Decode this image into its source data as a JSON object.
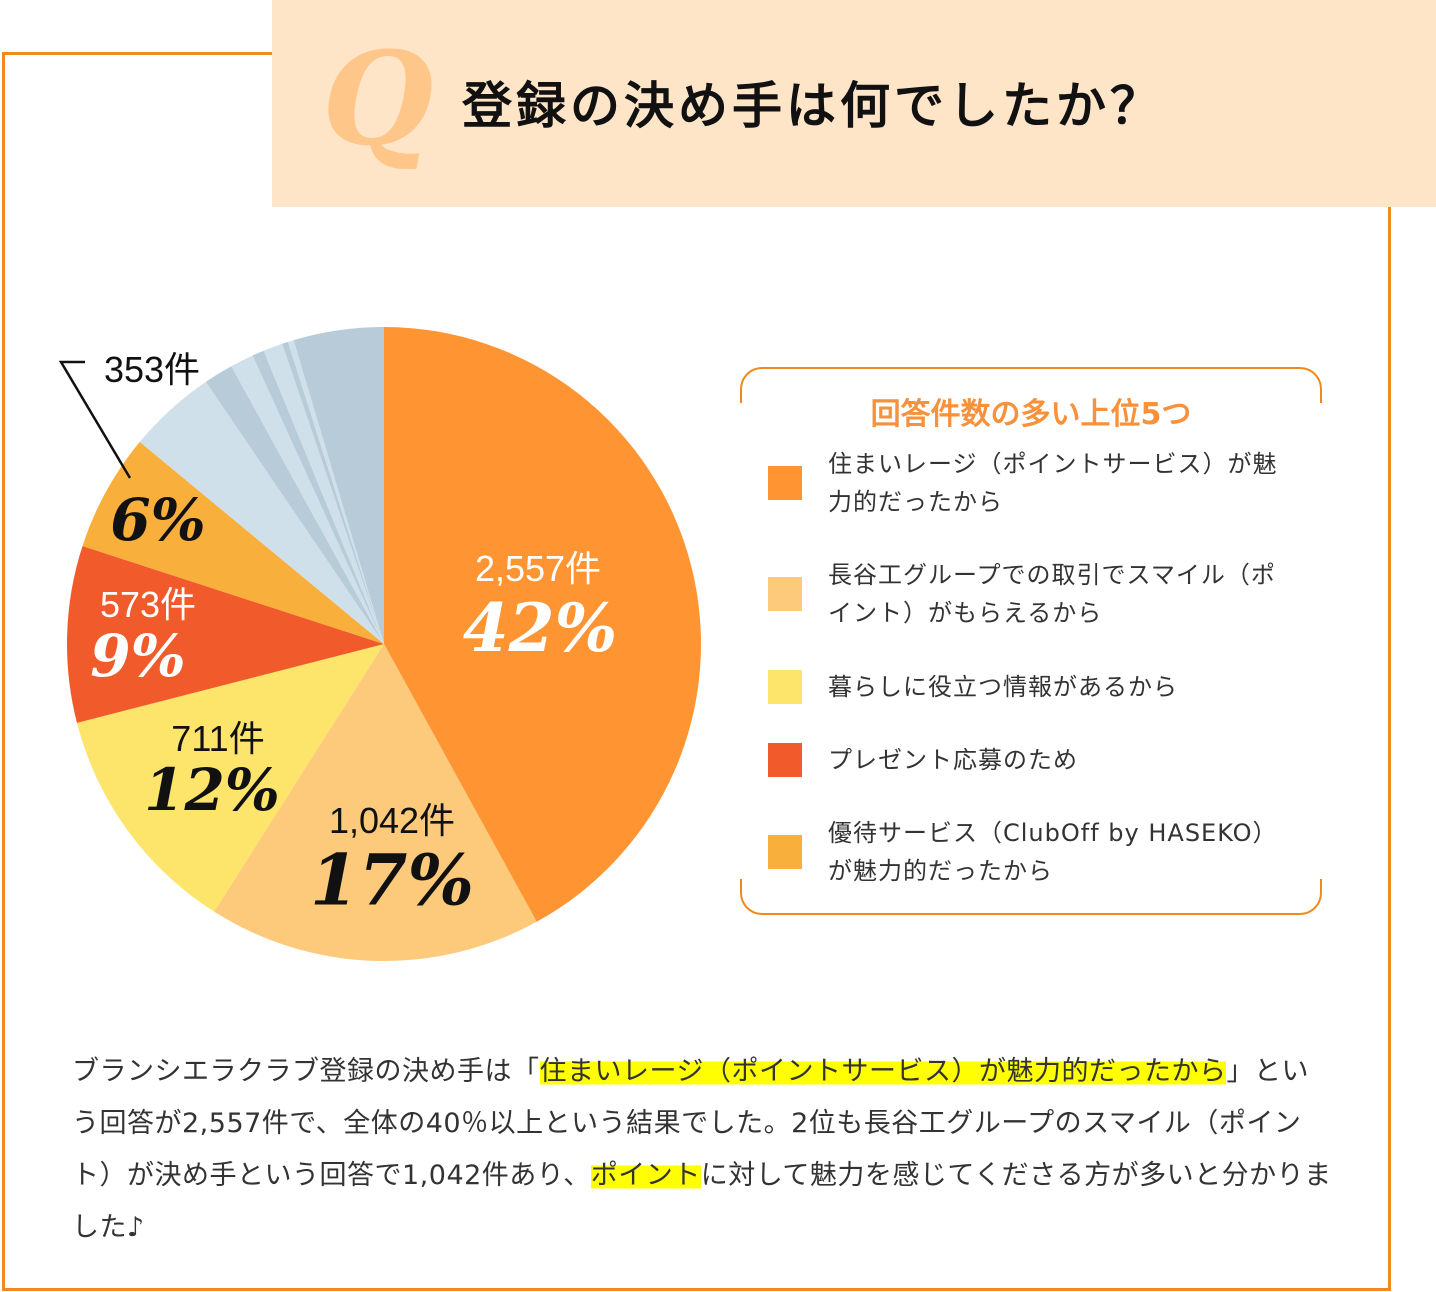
{
  "header": {
    "q_mark": "Q",
    "title": "登録の決め手は何でしたか？"
  },
  "colors": {
    "accent": "#F08A1E",
    "header_bg": "#FFE5C8",
    "highlight": "#FFFF00"
  },
  "chart_data": {
    "type": "pie",
    "title": "登録の決め手は何でしたか？",
    "start": "12 o'clock, clockwise",
    "slices": [
      {
        "name": "住まいレージ（ポイントサービス）が魅力的だったから",
        "count_label": "2,557件",
        "count": 2557,
        "pct_label": "42%",
        "value": 42,
        "color": "#FF9433"
      },
      {
        "name": "長谷工グループでの取引でスマイル（ポイント）がもらえるから",
        "count_label": "1,042件",
        "count": 1042,
        "pct_label": "17%",
        "value": 17,
        "color": "#FDC97A"
      },
      {
        "name": "暮らしに役立つ情報があるから",
        "count_label": "711件",
        "count": 711,
        "pct_label": "12%",
        "value": 12,
        "color": "#FDE46A"
      },
      {
        "name": "プレゼント応募のため",
        "count_label": "573件",
        "count": 573,
        "pct_label": "9%",
        "value": 9,
        "color": "#F15A2A"
      },
      {
        "name": "優待サービス（ClubOff by HASEKO）が魅力的だったから",
        "count_label": "353件",
        "count": 353,
        "pct_label": "6%",
        "value": 6,
        "color": "#F9AF3B"
      },
      {
        "name": "other-1",
        "value": 4.5,
        "color": "#CFE0EA"
      },
      {
        "name": "other-2",
        "value": 1.5,
        "color": "#B7CBD8"
      },
      {
        "name": "other-3",
        "value": 1.2,
        "color": "#CFE0EA"
      },
      {
        "name": "other-4",
        "value": 0.6,
        "color": "#B7CBD8"
      },
      {
        "name": "other-5",
        "value": 1.0,
        "color": "#CFE0EA"
      },
      {
        "name": "other-6",
        "value": 0.3,
        "color": "#B7CBD8"
      },
      {
        "name": "other-7",
        "value": 0.3,
        "color": "#CFE0EA"
      },
      {
        "name": "other-8",
        "value": 4.6,
        "color": "#B7CBD8"
      }
    ]
  },
  "legend": {
    "title": "回答件数の多い上位5つ",
    "items": [
      {
        "label": "住まいレージ（ポイントサービス）が魅力的だったから",
        "color": "#FF9433"
      },
      {
        "label": "長谷工グループでの取引でスマイル（ポイント）がもらえるから",
        "color": "#FDC97A"
      },
      {
        "label": "暮らしに役立つ情報があるから",
        "color": "#FDE46A"
      },
      {
        "label": "プレゼント応募のため",
        "color": "#F15A2A"
      },
      {
        "label": "優待サービス（ClubOff by HASEKO）が魅力的だったから",
        "color": "#F9AF3B"
      }
    ]
  },
  "description": {
    "p1": "ブランシエラクラブ登録の決め手は「",
    "h1": "住まいレージ（ポイントサービス）が魅力的だったから",
    "p2": "」という回答が2,557件で、全体の40％以上という結果でした。2位も長谷工グループのスマイル（ポイント）が決め手という回答で1,042件あり、",
    "h2": "ポイント",
    "p3": "に対して魅力を感じてくださる方が多いと分かりました♪"
  }
}
